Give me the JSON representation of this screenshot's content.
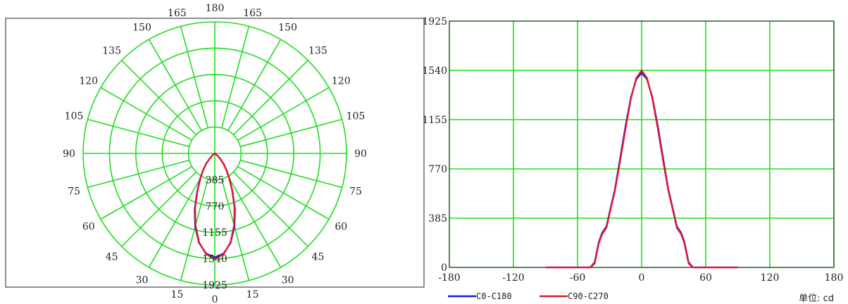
{
  "colors": {
    "grid": "#22dd22",
    "c0_c180": "#1a1aee",
    "c90_c270": "#e0182a",
    "frame": "#222222",
    "text": "#222222"
  },
  "chart_data": [
    {
      "type": "polar",
      "angle_labels_left": [
        "0",
        "15",
        "30",
        "45",
        "60",
        "75",
        "90",
        "105",
        "120",
        "135",
        "150",
        "165",
        "180"
      ],
      "angle_labels_right": [
        "15",
        "30",
        "45",
        "60",
        "75",
        "90",
        "105",
        "120",
        "135",
        "150",
        "165"
      ],
      "radial_labels": [
        "385",
        "770",
        "1155",
        "1540",
        "1925"
      ],
      "rmax": 1925,
      "angles_deg": [
        0,
        5,
        10,
        15,
        20,
        25,
        30,
        35,
        40,
        45,
        50,
        55,
        60,
        65,
        70,
        75,
        80,
        85,
        90
      ],
      "series": [
        {
          "name": "C0-C180",
          "values": [
            1520,
            1470,
            1330,
            1110,
            860,
            610,
            430,
            300,
            200,
            110,
            50,
            15,
            5,
            0,
            0,
            0,
            0,
            0,
            0
          ]
        },
        {
          "name": "C90-C270",
          "values": [
            1540,
            1480,
            1320,
            1090,
            840,
            600,
            420,
            290,
            195,
            105,
            48,
            14,
            5,
            0,
            0,
            0,
            0,
            0,
            0
          ]
        }
      ]
    },
    {
      "type": "line",
      "x_ticks": [
        "-180",
        "-120",
        "-60",
        "0",
        "60",
        "120",
        "180"
      ],
      "y_ticks": [
        "0",
        "385",
        "770",
        "1155",
        "1540",
        "1925"
      ],
      "xlim": [
        -180,
        180
      ],
      "ylim": [
        0,
        1925
      ],
      "x": [
        -90,
        -75,
        -60,
        -48,
        -44,
        -40,
        -37,
        -33,
        -30,
        -25,
        -20,
        -15,
        -10,
        -5,
        0,
        5,
        10,
        15,
        20,
        25,
        30,
        33,
        37,
        40,
        44,
        48,
        60,
        75,
        90
      ],
      "series": [
        {
          "name": "C0-C180",
          "values": [
            0,
            0,
            0,
            0,
            40,
            200,
            270,
            320,
            430,
            610,
            860,
            1110,
            1330,
            1470,
            1520,
            1470,
            1330,
            1110,
            860,
            610,
            430,
            320,
            270,
            200,
            40,
            0,
            0,
            0,
            0
          ]
        },
        {
          "name": "C90-C270",
          "values": [
            0,
            0,
            0,
            0,
            30,
            190,
            260,
            310,
            420,
            600,
            840,
            1090,
            1320,
            1480,
            1540,
            1480,
            1320,
            1090,
            840,
            600,
            420,
            310,
            260,
            190,
            30,
            0,
            0,
            0,
            0
          ]
        }
      ]
    }
  ],
  "legend": [
    {
      "label": "C0-C180"
    },
    {
      "label": "C90-C270"
    }
  ],
  "unit_label": "单位: cd"
}
